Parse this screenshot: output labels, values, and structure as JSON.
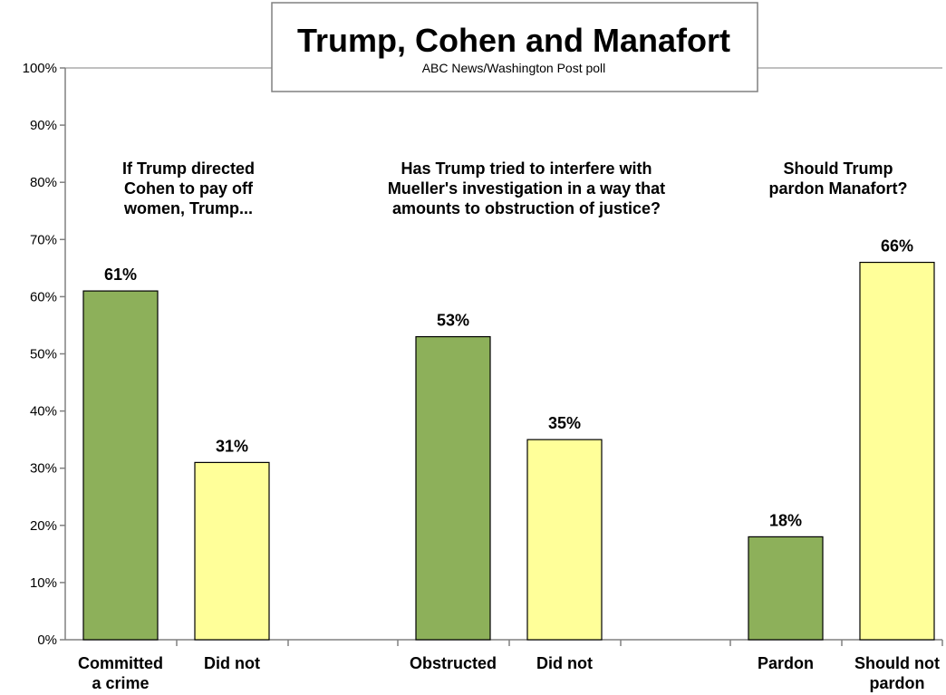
{
  "colors": {
    "green": "#8db05a",
    "yellow": "#ffff99",
    "bar_stroke": "#000000",
    "axis": "#808080",
    "background": "#ffffff"
  },
  "chart_data": {
    "type": "bar",
    "title": "Trump, Cohen and Manafort",
    "subtitle": "ABC News/Washington  Post poll",
    "ylim": [
      0,
      100
    ],
    "y_ticks": [
      0,
      10,
      20,
      30,
      40,
      50,
      60,
      70,
      80,
      90,
      100
    ],
    "y_tick_labels": [
      "0%",
      "10%",
      "20%",
      "30%",
      "40%",
      "50%",
      "60%",
      "70%",
      "80%",
      "90%",
      "100%"
    ],
    "grid": false,
    "legend": "none",
    "groups": [
      {
        "question_lines": [
          "If Trump directed",
          "Cohen to pay off",
          "women, Trump..."
        ],
        "bars": [
          {
            "label_lines": [
              "Committed",
              "a crime"
            ],
            "value": 61,
            "value_label": "61%",
            "color": "green"
          },
          {
            "label_lines": [
              "Did not"
            ],
            "value": 31,
            "value_label": "31%",
            "color": "yellow"
          }
        ]
      },
      {
        "question_lines": [
          "Has Trump tried to interfere with",
          "Mueller's investigation in a way that",
          "amounts to obstruction of justice?"
        ],
        "bars": [
          {
            "label_lines": [
              "Obstructed"
            ],
            "value": 53,
            "value_label": "53%",
            "color": "green"
          },
          {
            "label_lines": [
              "Did not"
            ],
            "value": 35,
            "value_label": "35%",
            "color": "yellow"
          }
        ]
      },
      {
        "question_lines": [
          "Should Trump",
          "pardon Manafort?"
        ],
        "bars": [
          {
            "label_lines": [
              "Pardon"
            ],
            "value": 18,
            "value_label": "18%",
            "color": "green"
          },
          {
            "label_lines": [
              "Should not",
              "pardon"
            ],
            "value": 66,
            "value_label": "66%",
            "color": "yellow"
          }
        ]
      }
    ]
  }
}
